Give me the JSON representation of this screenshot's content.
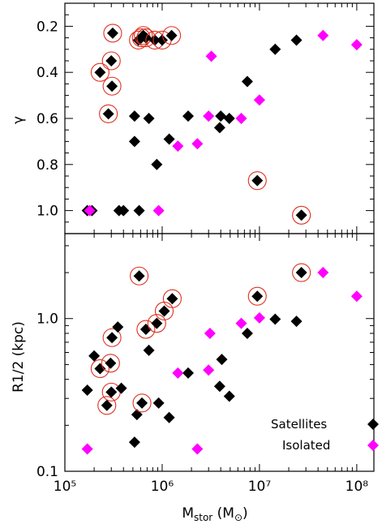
{
  "chart_data": [
    {
      "type": "scatter",
      "title": "",
      "xlabel": "M_stor (M⊙)",
      "ylabel": "γ",
      "x_scale": "log",
      "xlim": [
        100000,
        150000000
      ],
      "ylim": [
        1.1,
        0.1
      ],
      "y_inverted": true,
      "y_ticks": [
        "0.2",
        "0.4",
        "0.6",
        "0.8",
        "1.0"
      ],
      "y_tick_values": [
        0.2,
        0.4,
        0.6,
        0.8,
        1.0
      ],
      "series": [
        {
          "name": "Satellites",
          "color": "#000000",
          "marker": "diamond",
          "points": [
            {
              "x": 170000,
              "y": 1.0,
              "circled": false
            },
            {
              "x": 190000,
              "y": 1.0,
              "circled": false
            },
            {
              "x": 230000,
              "y": 0.4,
              "circled": true
            },
            {
              "x": 280000,
              "y": 0.58,
              "circled": true
            },
            {
              "x": 300000,
              "y": 0.35,
              "circled": true
            },
            {
              "x": 305000,
              "y": 0.46,
              "circled": true
            },
            {
              "x": 310000,
              "y": 0.23,
              "circled": true
            },
            {
              "x": 360000,
              "y": 1.0,
              "circled": false
            },
            {
              "x": 400000,
              "y": 1.0,
              "circled": false
            },
            {
              "x": 520000,
              "y": 0.59,
              "circled": false
            },
            {
              "x": 520000,
              "y": 0.7,
              "circled": false
            },
            {
              "x": 570000,
              "y": 0.26,
              "circled": true
            },
            {
              "x": 580000,
              "y": 1.0,
              "circled": false
            },
            {
              "x": 610000,
              "y": 0.25,
              "circled": true
            },
            {
              "x": 640000,
              "y": 0.24,
              "circled": true
            },
            {
              "x": 680000,
              "y": 0.25,
              "circled": true
            },
            {
              "x": 730000,
              "y": 0.6,
              "circled": false
            },
            {
              "x": 840000,
              "y": 0.26,
              "circled": true
            },
            {
              "x": 880000,
              "y": 0.8,
              "circled": false
            },
            {
              "x": 1000000,
              "y": 0.26,
              "circled": true
            },
            {
              "x": 1180000,
              "y": 0.69,
              "circled": false
            },
            {
              "x": 1250000,
              "y": 0.24,
              "circled": true
            },
            {
              "x": 1850000,
              "y": 0.59,
              "circled": false
            },
            {
              "x": 3900000,
              "y": 0.64,
              "circled": false
            },
            {
              "x": 4000000,
              "y": 0.59,
              "circled": false
            },
            {
              "x": 4900000,
              "y": 0.6,
              "circled": false
            },
            {
              "x": 7500000,
              "y": 0.44,
              "circled": false
            },
            {
              "x": 9500000,
              "y": 0.87,
              "circled": true
            },
            {
              "x": 14500000,
              "y": 0.3,
              "circled": false
            },
            {
              "x": 24000000,
              "y": 0.26,
              "circled": false
            },
            {
              "x": 27000000,
              "y": 1.02,
              "circled": true
            }
          ]
        },
        {
          "name": "Isolated",
          "color": "#ff00ff",
          "marker": "diamond",
          "points": [
            {
              "x": 180000,
              "y": 1.0
            },
            {
              "x": 920000,
              "y": 1.0
            },
            {
              "x": 1450000,
              "y": 0.72
            },
            {
              "x": 2300000,
              "y": 0.71
            },
            {
              "x": 3000000,
              "y": 0.59
            },
            {
              "x": 3200000,
              "y": 0.33
            },
            {
              "x": 6500000,
              "y": 0.6
            },
            {
              "x": 10000000,
              "y": 0.52
            },
            {
              "x": 45000000,
              "y": 0.24
            },
            {
              "x": 100000000,
              "y": 0.28
            }
          ]
        }
      ]
    },
    {
      "type": "scatter",
      "title": "",
      "xlabel": "M_stor (M⊙)",
      "ylabel": "R1/2 (kpc)",
      "x_scale": "log",
      "y_scale": "log",
      "xlim": [
        100000,
        150000000
      ],
      "ylim": [
        0.1,
        3.6
      ],
      "x_ticks": [
        "10⁵",
        "10⁶",
        "10⁷",
        "10⁸"
      ],
      "x_tick_values": [
        100000,
        1000000,
        10000000,
        100000000
      ],
      "y_ticks": [
        "0.1",
        "1.0"
      ],
      "y_tick_values": [
        0.1,
        1.0
      ],
      "legend_position": "bottom-right",
      "series": [
        {
          "name": "Satellites",
          "color": "#000000",
          "marker": "diamond",
          "points": [
            {
              "x": 170000,
              "y": 0.34,
              "circled": false
            },
            {
              "x": 200000,
              "y": 0.57,
              "circled": false
            },
            {
              "x": 230000,
              "y": 0.47,
              "circled": true
            },
            {
              "x": 270000,
              "y": 0.27,
              "circled": true
            },
            {
              "x": 295000,
              "y": 0.51,
              "circled": true
            },
            {
              "x": 300000,
              "y": 0.33,
              "circled": true
            },
            {
              "x": 305000,
              "y": 0.75,
              "circled": true
            },
            {
              "x": 350000,
              "y": 0.88,
              "circled": false
            },
            {
              "x": 380000,
              "y": 0.35,
              "circled": false
            },
            {
              "x": 520000,
              "y": 0.155,
              "circled": false
            },
            {
              "x": 550000,
              "y": 0.235,
              "circled": false
            },
            {
              "x": 580000,
              "y": 1.9,
              "circled": true
            },
            {
              "x": 620000,
              "y": 0.28,
              "circled": true
            },
            {
              "x": 680000,
              "y": 0.85,
              "circled": true
            },
            {
              "x": 730000,
              "y": 0.62,
              "circled": false
            },
            {
              "x": 880000,
              "y": 0.93,
              "circled": true
            },
            {
              "x": 920000,
              "y": 0.28,
              "circled": false
            },
            {
              "x": 1050000,
              "y": 1.12,
              "circled": true
            },
            {
              "x": 1180000,
              "y": 0.225,
              "circled": false
            },
            {
              "x": 1270000,
              "y": 1.35,
              "circled": true
            },
            {
              "x": 1850000,
              "y": 0.44,
              "circled": false
            },
            {
              "x": 3900000,
              "y": 0.36,
              "circled": false
            },
            {
              "x": 4100000,
              "y": 0.54,
              "circled": false
            },
            {
              "x": 4900000,
              "y": 0.31,
              "circled": false
            },
            {
              "x": 7500000,
              "y": 0.8,
              "circled": false
            },
            {
              "x": 9500000,
              "y": 1.4,
              "circled": true
            },
            {
              "x": 14500000,
              "y": 0.99,
              "circled": false
            },
            {
              "x": 24000000,
              "y": 0.96,
              "circled": false
            },
            {
              "x": 27000000,
              "y": 2.0,
              "circled": true
            }
          ]
        },
        {
          "name": "Isolated",
          "color": "#ff00ff",
          "marker": "diamond",
          "points": [
            {
              "x": 170000,
              "y": 0.14
            },
            {
              "x": 1450000,
              "y": 0.44
            },
            {
              "x": 2300000,
              "y": 0.14
            },
            {
              "x": 3000000,
              "y": 0.46
            },
            {
              "x": 3100000,
              "y": 0.8
            },
            {
              "x": 6500000,
              "y": 0.93
            },
            {
              "x": 10000000,
              "y": 1.01
            },
            {
              "x": 45000000,
              "y": 2.0
            },
            {
              "x": 100000000,
              "y": 1.4
            }
          ]
        }
      ]
    }
  ],
  "legend": {
    "satellites_label": "Satellites",
    "isolated_label": "Isolated"
  },
  "labels": {
    "top_y": "γ",
    "bottom_y": "R1/2 (kpc)",
    "x_main": "M",
    "x_sub": "stor",
    "x_unit_open": " (M",
    "x_unit_sym": "⊙",
    "x_unit_close": ")"
  }
}
